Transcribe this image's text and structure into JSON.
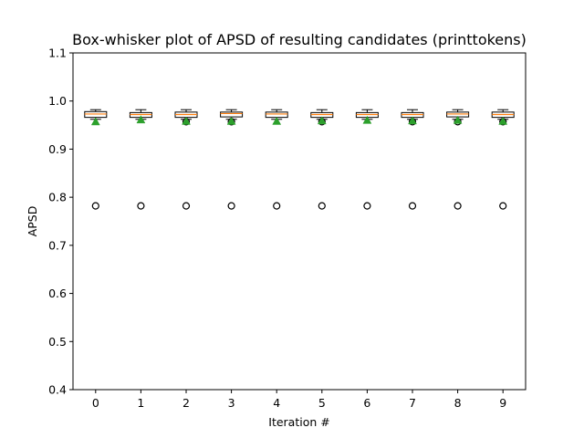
{
  "chart_data": {
    "type": "box",
    "title": "Box-whisker plot of APSD of resulting candidates (printtokens)",
    "xlabel": "Iteration #",
    "ylabel": "APSD",
    "ylim": [
      0.4,
      1.1
    ],
    "yticks": [
      "0.4",
      "0.5",
      "0.6",
      "0.7",
      "0.8",
      "0.9",
      "1.0",
      "1.1"
    ],
    "categories": [
      "0",
      "1",
      "2",
      "3",
      "4",
      "5",
      "6",
      "7",
      "8",
      "9"
    ],
    "grid": false,
    "boxes": [
      {
        "whislo": 0.962,
        "q1": 0.966,
        "med": 0.973,
        "q3": 0.978,
        "whishi": 0.982,
        "mean": 0.957,
        "fliers": [
          0.782
        ]
      },
      {
        "whislo": 0.962,
        "q1": 0.966,
        "med": 0.972,
        "q3": 0.976,
        "whishi": 0.982,
        "mean": 0.961,
        "fliers": [
          0.782
        ]
      },
      {
        "whislo": 0.962,
        "q1": 0.966,
        "med": 0.972,
        "q3": 0.977,
        "whishi": 0.982,
        "mean": 0.958,
        "fliers": [
          0.782,
          0.957
        ]
      },
      {
        "whislo": 0.962,
        "q1": 0.967,
        "med": 0.974,
        "q3": 0.977,
        "whishi": 0.982,
        "mean": 0.958,
        "fliers": [
          0.782,
          0.957
        ]
      },
      {
        "whislo": 0.962,
        "q1": 0.966,
        "med": 0.973,
        "q3": 0.977,
        "whishi": 0.982,
        "mean": 0.958,
        "fliers": [
          0.782
        ]
      },
      {
        "whislo": 0.962,
        "q1": 0.966,
        "med": 0.972,
        "q3": 0.976,
        "whishi": 0.982,
        "mean": 0.959,
        "fliers": [
          0.782,
          0.957
        ]
      },
      {
        "whislo": 0.962,
        "q1": 0.966,
        "med": 0.972,
        "q3": 0.976,
        "whishi": 0.982,
        "mean": 0.96,
        "fliers": [
          0.782
        ]
      },
      {
        "whislo": 0.962,
        "q1": 0.966,
        "med": 0.972,
        "q3": 0.976,
        "whishi": 0.982,
        "mean": 0.959,
        "fliers": [
          0.782,
          0.957
        ]
      },
      {
        "whislo": 0.962,
        "q1": 0.967,
        "med": 0.973,
        "q3": 0.977,
        "whishi": 0.982,
        "mean": 0.96,
        "fliers": [
          0.782,
          0.957
        ]
      },
      {
        "whislo": 0.962,
        "q1": 0.966,
        "med": 0.972,
        "q3": 0.977,
        "whishi": 0.982,
        "mean": 0.958,
        "fliers": [
          0.782,
          0.957
        ]
      }
    ],
    "colors": {
      "box": "#000000",
      "median": "#ff7f0e",
      "mean": "#2ca02c",
      "flier": "#000000"
    }
  }
}
